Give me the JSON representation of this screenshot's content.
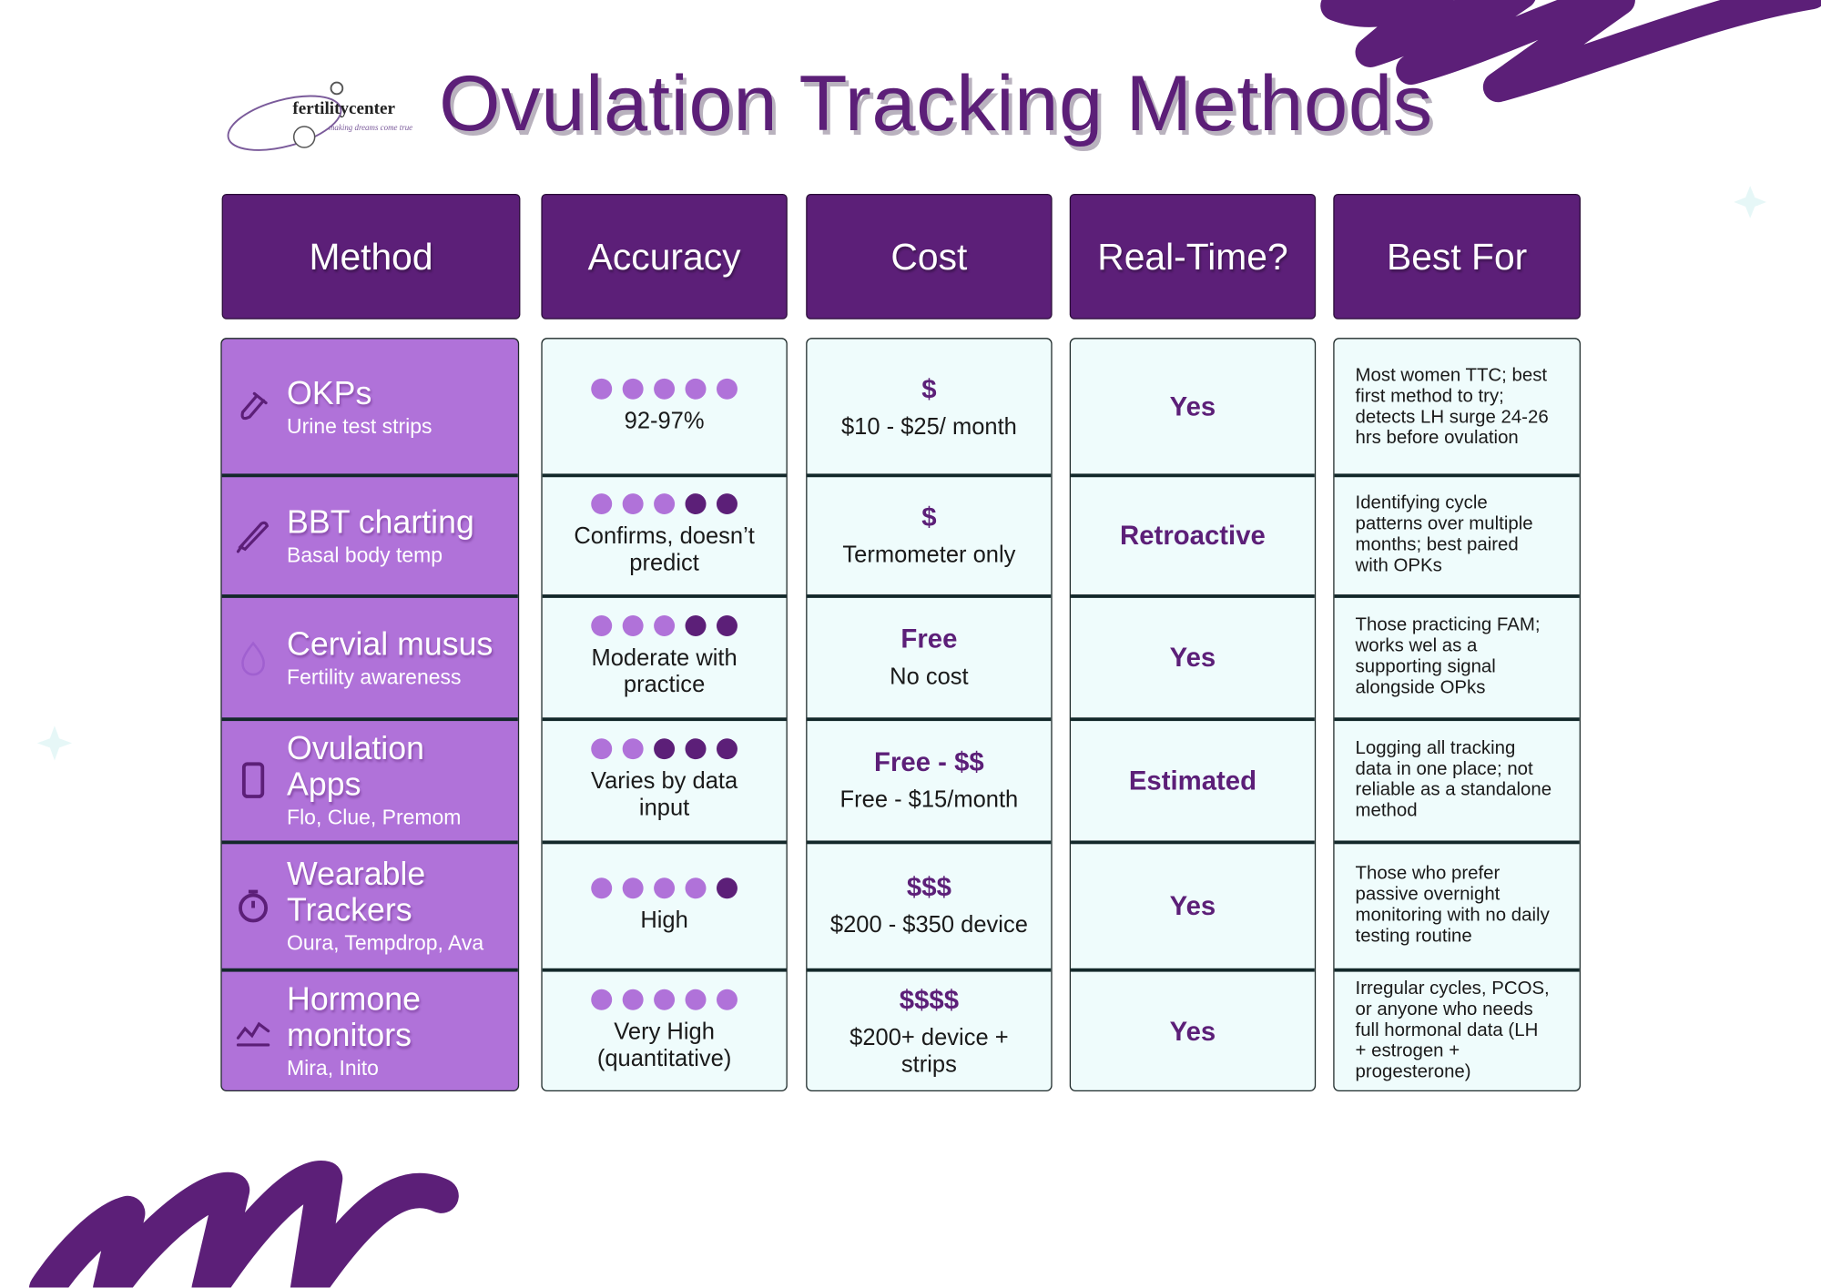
{
  "header": {
    "logo_name": "fertilitycenter",
    "logo_tagline": "making dreams come true",
    "title": "Ovulation Tracking Methods"
  },
  "table": {
    "columns": [
      "Method",
      "Accuracy",
      "Cost",
      "Real-Time?",
      "Best For"
    ],
    "accuracy_scale": 5,
    "rows": [
      {
        "method": "OKPs",
        "detail": "Urine test strips",
        "accuracy_dots": 5,
        "accuracy": "92-97%",
        "cost_symbol": "$",
        "cost": "$10 - $25/ month",
        "real_time": "Yes",
        "best_for": "Most women TTC; best first method to try; detects LH surge 24-26 hrs before ovulation"
      },
      {
        "method": "BBT charting",
        "detail": "Basal body temp",
        "accuracy_dots": 3,
        "accuracy": "Confirms, doesn’t predict",
        "cost_symbol": "$",
        "cost": "Termometer only",
        "real_time": "Retroactive",
        "best_for": "Identifying cycle patterns over multiple months; best paired with OPKs"
      },
      {
        "method": "Cervial musus",
        "detail": "Fertility awareness",
        "accuracy_dots": 3,
        "accuracy": "Moderate with practice",
        "cost_symbol": "Free",
        "cost": "No cost",
        "real_time": "Yes",
        "best_for": "Those practicing FAM; works wel as a supporting signal alongside OPks"
      },
      {
        "method": "Ovulation Apps",
        "detail": "Flo, Clue, Premom",
        "accuracy_dots": 2,
        "accuracy": "Varies by data input",
        "cost_symbol": "Free - $$",
        "cost": "Free - $15/month",
        "real_time": "Estimated",
        "best_for": "Logging all tracking data in one place; not reliable as a standalone method"
      },
      {
        "method": "Wearable Trackers",
        "detail": "Oura, Tempdrop, Ava",
        "accuracy_dots": 4,
        "accuracy": "High",
        "cost_symbol": "$$$",
        "cost": "$200 - $350 device",
        "real_time": "Yes",
        "best_for": "Those who prefer passive overnight monitoring with no daily testing routine"
      },
      {
        "method": "Hormone monitors",
        "detail": "Mira, Inito",
        "accuracy_dots": 5,
        "accuracy": "Very High (quantitative)",
        "cost_symbol": "$$$$",
        "cost": "$200+ device + strips",
        "real_time": "Yes",
        "best_for": "Irregular cycles, PCOS, or anyone who needs full hormonal data (LH + estrogen + progesterone)"
      }
    ]
  }
}
